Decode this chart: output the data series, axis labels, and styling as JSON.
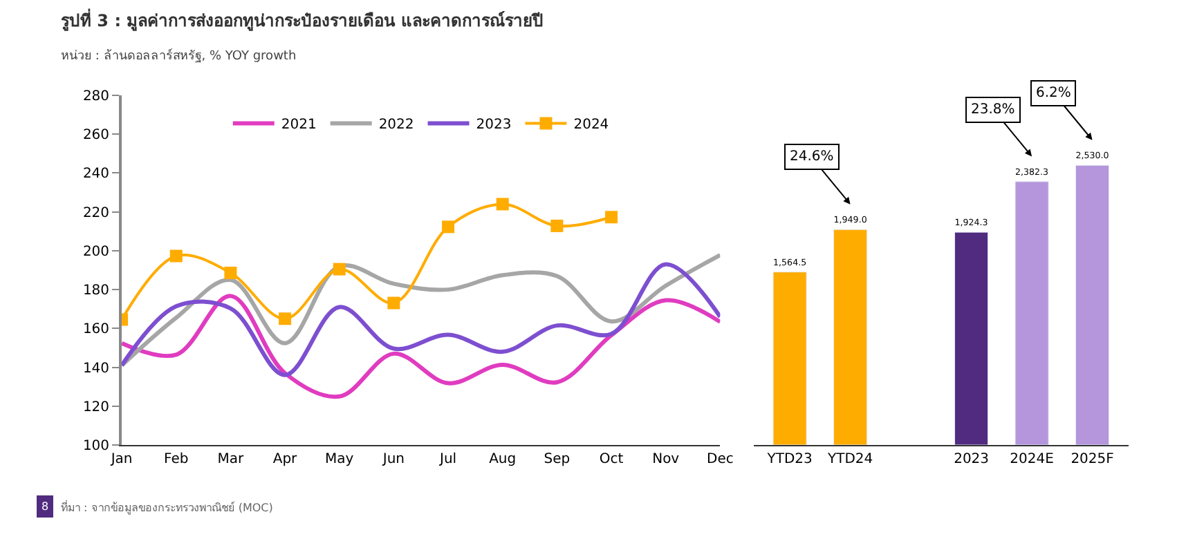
{
  "chart_data": [
    {
      "type": "line",
      "title": "รูปที่ 3 : มูลค่าการส่งออกทูน่ากระป๋องรายเดือน และคาดการณ์รายปี",
      "subtitle": "หน่วย : ล้านดอลลาร์สหรัฐ, % YOY growth",
      "categories": [
        "Jan",
        "Feb",
        "Mar",
        "Apr",
        "May",
        "Jun",
        "Jul",
        "Aug",
        "Sep",
        "Oct",
        "Nov",
        "Dec"
      ],
      "series": [
        {
          "name": "2021",
          "color": "#e03cc0",
          "marker": "none",
          "values": [
            152.4,
            146.5,
            176.7,
            137,
            125,
            147,
            131.8,
            141.3,
            132.3,
            156.5,
            174.5,
            163.4
          ]
        },
        {
          "name": "2022",
          "color": "#a6a6a6",
          "marker": "none",
          "values": [
            141,
            165.5,
            185,
            152.4,
            192,
            183,
            180,
            187.4,
            187,
            163.6,
            182,
            197.8
          ]
        },
        {
          "name": "2023",
          "color": "#7d4fd0",
          "marker": "none",
          "values": [
            141,
            171.4,
            170.3,
            136,
            171,
            149.6,
            156.7,
            148,
            161.5,
            157.2,
            193,
            166
          ]
        },
        {
          "name": "2024",
          "color": "#ffac00",
          "marker": "square",
          "values": [
            164.6,
            197.3,
            188.6,
            165,
            190.5,
            173.1,
            212.3,
            224,
            212.8,
            217.3,
            null,
            null
          ]
        }
      ],
      "ylim": [
        100,
        280
      ],
      "yticks": [
        100,
        120,
        140,
        160,
        180,
        200,
        220,
        240,
        260,
        280
      ],
      "legend": "top",
      "line_style": "solid",
      "annotations": [
        "8",
        "ที่มา : จากข้อมูลของกระทรวงพาณิชย์ (MOC)"
      ]
    },
    {
      "type": "bar",
      "categories": [
        "YTD23",
        "YTD24",
        null,
        "2023",
        "2024E",
        "2025F"
      ],
      "values": [
        1564.5,
        1949.0,
        null,
        1924.3,
        2382.3,
        2530.0
      ],
      "colors": [
        "#ffac00",
        "#ffac00",
        "#ffffff",
        "#512b7f",
        "#b596dc",
        "#b596dc"
      ],
      "value_labels": [
        "1,564.5",
        "1,949.0",
        null,
        "1,924.3",
        "2,382.3",
        "2,530.0"
      ],
      "annotations": [
        "24.6%",
        "23.8%",
        "6.2%"
      ]
    }
  ]
}
